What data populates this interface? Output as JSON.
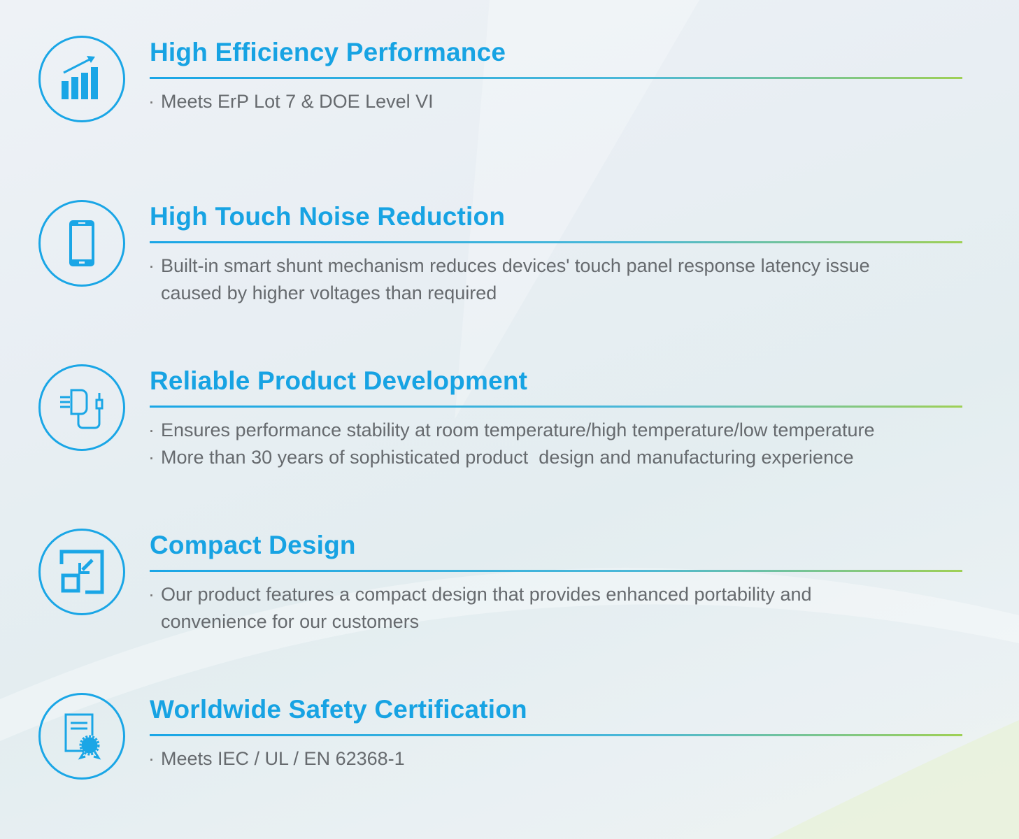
{
  "accent_color": "#17a3e3",
  "accent_secondary": "#9fd055",
  "features": [
    {
      "icon": "bar-chart-growth-icon",
      "title": "High Efficiency Performance",
      "bullets": [
        "Meets ErP Lot 7 & DOE Level VI"
      ]
    },
    {
      "icon": "smartphone-icon",
      "title": "High Touch Noise Reduction",
      "bullets": [
        "Built-in smart shunt mechanism reduces devices' touch panel response latency issue\ncaused by higher voltages than required"
      ]
    },
    {
      "icon": "power-adapter-icon",
      "title": "Reliable Product Development",
      "bullets": [
        "Ensures performance stability at room temperature/high temperature/low temperature",
        "More than 30 years of sophisticated product  design and manufacturing experience"
      ]
    },
    {
      "icon": "compact-resize-icon",
      "title": "Compact Design",
      "bullets": [
        "Our product features a compact design that provides enhanced portability and\nconvenience for our customers"
      ]
    },
    {
      "icon": "certificate-icon",
      "title": "Worldwide Safety Certification",
      "bullets": [
        "Meets IEC / UL / EN 62368-1"
      ]
    }
  ]
}
